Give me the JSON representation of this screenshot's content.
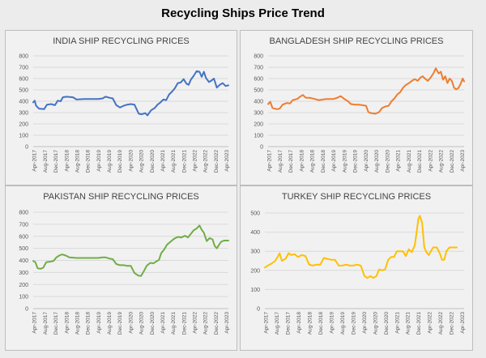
{
  "page": {
    "title": "Recycling Ships Price Trend"
  },
  "x_ticks": [
    "Apr-2017",
    "Aug-2017",
    "Dec-2017",
    "Apr-2018",
    "Aug-2018",
    "Dec-2018",
    "Apr-2019",
    "Aug-2019",
    "Dec-2019",
    "Apr-2020",
    "Aug-2020",
    "Dec-2020",
    "Apr-2021",
    "Aug-2021",
    "Dec-2021",
    "Apr-2022",
    "Aug-2022",
    "Dec-2022",
    "Apr-2023"
  ],
  "chart_data": [
    {
      "type": "line",
      "title": "INDIA SHIP RECYCLING PRICES",
      "color": "#4472c4",
      "ylim": [
        0,
        800
      ],
      "yticks": [
        0,
        100,
        200,
        300,
        400,
        500,
        600,
        700,
        800
      ],
      "grid": true,
      "series": [
        {
          "values": [
            [
              0,
              390
            ],
            [
              0.2,
              405
            ],
            [
              0.4,
              360
            ],
            [
              0.8,
              335
            ],
            [
              1.5,
              330
            ],
            [
              1.9,
              370
            ],
            [
              2.5,
              375
            ],
            [
              3,
              365
            ],
            [
              3.4,
              405
            ],
            [
              3.8,
              400
            ],
            [
              4.1,
              435
            ],
            [
              4.6,
              440
            ],
            [
              5.5,
              435
            ],
            [
              6,
              415
            ],
            [
              7,
              420
            ],
            [
              8,
              420
            ],
            [
              9,
              420
            ],
            [
              9.6,
              425
            ],
            [
              10,
              440
            ],
            [
              10.6,
              430
            ],
            [
              11,
              425
            ],
            [
              11.5,
              365
            ],
            [
              12,
              345
            ],
            [
              12.5,
              360
            ],
            [
              13,
              370
            ],
            [
              13.5,
              375
            ],
            [
              14,
              370
            ],
            [
              14.6,
              290
            ],
            [
              15,
              285
            ],
            [
              15.5,
              295
            ],
            [
              15.8,
              275
            ],
            [
              16.3,
              320
            ],
            [
              16.8,
              340
            ],
            [
              17.2,
              370
            ],
            [
              17.6,
              390
            ],
            [
              18,
              415
            ],
            [
              18.4,
              410
            ],
            [
              18.8,
              460
            ],
            [
              19.2,
              485
            ],
            [
              19.6,
              515
            ],
            [
              20,
              560
            ],
            [
              20.4,
              565
            ],
            [
              20.8,
              595
            ],
            [
              21.2,
              555
            ],
            [
              21.5,
              545
            ],
            [
              21.8,
              590
            ],
            [
              22.2,
              625
            ],
            [
              22.6,
              665
            ],
            [
              23,
              660
            ],
            [
              23.3,
              615
            ],
            [
              23.6,
              660
            ],
            [
              23.9,
              605
            ],
            [
              24.3,
              570
            ],
            [
              24.6,
              580
            ],
            [
              25,
              600
            ],
            [
              25.4,
              520
            ],
            [
              25.8,
              545
            ],
            [
              26.2,
              560
            ],
            [
              26.6,
              535
            ],
            [
              27,
              540
            ]
          ]
        }
      ]
    },
    {
      "type": "line",
      "title": "BANGLADESH SHIP RECYCLING PRICES",
      "color": "#ed7d31",
      "ylim": [
        0,
        800
      ],
      "yticks": [
        0,
        100,
        200,
        300,
        400,
        500,
        600,
        700,
        800
      ],
      "grid": true,
      "series": [
        {
          "values": [
            [
              0,
              375
            ],
            [
              0.3,
              395
            ],
            [
              0.6,
              340
            ],
            [
              1.2,
              330
            ],
            [
              1.6,
              335
            ],
            [
              2,
              370
            ],
            [
              2.6,
              385
            ],
            [
              3,
              380
            ],
            [
              3.4,
              410
            ],
            [
              4,
              420
            ],
            [
              4.4,
              440
            ],
            [
              4.8,
              455
            ],
            [
              5.2,
              430
            ],
            [
              5.8,
              430
            ],
            [
              6.4,
              420
            ],
            [
              7,
              410
            ],
            [
              8,
              420
            ],
            [
              9,
              420
            ],
            [
              9.5,
              430
            ],
            [
              10,
              445
            ],
            [
              10.5,
              420
            ],
            [
              11,
              400
            ],
            [
              11.4,
              375
            ],
            [
              12,
              370
            ],
            [
              12.5,
              370
            ],
            [
              13,
              365
            ],
            [
              13.5,
              360
            ],
            [
              13.8,
              305
            ],
            [
              14.2,
              295
            ],
            [
              14.8,
              290
            ],
            [
              15.3,
              305
            ],
            [
              15.7,
              340
            ],
            [
              16.2,
              355
            ],
            [
              16.6,
              360
            ],
            [
              17,
              400
            ],
            [
              17.4,
              425
            ],
            [
              17.8,
              460
            ],
            [
              18.2,
              480
            ],
            [
              18.6,
              520
            ],
            [
              19,
              545
            ],
            [
              19.4,
              560
            ],
            [
              19.8,
              580
            ],
            [
              20.2,
              595
            ],
            [
              20.6,
              580
            ],
            [
              21,
              610
            ],
            [
              21.3,
              620
            ],
            [
              21.6,
              600
            ],
            [
              22,
              580
            ],
            [
              22.4,
              610
            ],
            [
              22.8,
              650
            ],
            [
              23.1,
              690
            ],
            [
              23.5,
              645
            ],
            [
              23.8,
              660
            ],
            [
              24.1,
              590
            ],
            [
              24.4,
              620
            ],
            [
              24.7,
              560
            ],
            [
              25,
              600
            ],
            [
              25.3,
              580
            ],
            [
              25.6,
              520
            ],
            [
              25.9,
              505
            ],
            [
              26.2,
              515
            ],
            [
              26.5,
              550
            ],
            [
              26.8,
              600
            ],
            [
              27,
              575
            ]
          ]
        }
      ]
    },
    {
      "type": "line",
      "title": "PAKISTAN SHIP RECYCLING PRICES",
      "color": "#70ad47",
      "ylim": [
        0,
        800
      ],
      "yticks": [
        0,
        100,
        200,
        300,
        400,
        500,
        600,
        700,
        800
      ],
      "grid": true,
      "series": [
        {
          "values": [
            [
              0,
              395
            ],
            [
              0.3,
              385
            ],
            [
              0.6,
              335
            ],
            [
              1,
              330
            ],
            [
              1.4,
              340
            ],
            [
              1.8,
              385
            ],
            [
              2.4,
              390
            ],
            [
              2.8,
              395
            ],
            [
              3.2,
              425
            ],
            [
              3.6,
              440
            ],
            [
              4,
              450
            ],
            [
              4.5,
              440
            ],
            [
              5,
              425
            ],
            [
              6,
              420
            ],
            [
              7,
              420
            ],
            [
              8,
              420
            ],
            [
              9,
              420
            ],
            [
              9.6,
              425
            ],
            [
              10,
              425
            ],
            [
              10.6,
              415
            ],
            [
              11,
              410
            ],
            [
              11.5,
              370
            ],
            [
              12,
              360
            ],
            [
              12.5,
              360
            ],
            [
              13,
              355
            ],
            [
              13.5,
              355
            ],
            [
              14,
              295
            ],
            [
              14.5,
              275
            ],
            [
              14.9,
              270
            ],
            [
              15.3,
              310
            ],
            [
              15.7,
              355
            ],
            [
              16.2,
              380
            ],
            [
              16.6,
              375
            ],
            [
              17,
              390
            ],
            [
              17.4,
              405
            ],
            [
              17.7,
              460
            ],
            [
              18.1,
              490
            ],
            [
              18.5,
              530
            ],
            [
              19,
              555
            ],
            [
              19.5,
              580
            ],
            [
              20,
              595
            ],
            [
              20.5,
              590
            ],
            [
              21,
              605
            ],
            [
              21.4,
              590
            ],
            [
              21.8,
              620
            ],
            [
              22.2,
              650
            ],
            [
              22.6,
              665
            ],
            [
              23,
              690
            ],
            [
              23.3,
              655
            ],
            [
              23.6,
              630
            ],
            [
              24,
              560
            ],
            [
              24.4,
              585
            ],
            [
              24.8,
              575
            ],
            [
              25.1,
              520
            ],
            [
              25.4,
              500
            ],
            [
              25.7,
              530
            ],
            [
              26,
              555
            ],
            [
              26.4,
              565
            ],
            [
              27,
              565
            ]
          ]
        }
      ]
    },
    {
      "type": "line",
      "title": "TURKEY SHIP RECYCLING PRICES",
      "color": "#ffc000",
      "ylim": [
        0,
        500
      ],
      "yticks": [
        0,
        100,
        200,
        300,
        400,
        500
      ],
      "grid": true,
      "series": [
        {
          "values": [
            [
              0,
              215
            ],
            [
              0.4,
              225
            ],
            [
              0.9,
              235
            ],
            [
              1.4,
              250
            ],
            [
              1.8,
              275
            ],
            [
              2,
              290
            ],
            [
              2.3,
              250
            ],
            [
              2.8,
              260
            ],
            [
              3.2,
              290
            ],
            [
              3.6,
              280
            ],
            [
              4,
              285
            ],
            [
              4.5,
              270
            ],
            [
              5,
              280
            ],
            [
              5.5,
              275
            ],
            [
              6,
              230
            ],
            [
              6.5,
              225
            ],
            [
              7,
              230
            ],
            [
              7.5,
              230
            ],
            [
              8,
              265
            ],
            [
              8.5,
              260
            ],
            [
              9,
              255
            ],
            [
              9.5,
              255
            ],
            [
              10,
              225
            ],
            [
              10.5,
              225
            ],
            [
              11,
              230
            ],
            [
              11.5,
              225
            ],
            [
              12,
              225
            ],
            [
              12.5,
              230
            ],
            [
              13,
              225
            ],
            [
              13.5,
              170
            ],
            [
              13.9,
              160
            ],
            [
              14.3,
              170
            ],
            [
              14.7,
              160
            ],
            [
              15.1,
              170
            ],
            [
              15.5,
              205
            ],
            [
              15.9,
              200
            ],
            [
              16.3,
              205
            ],
            [
              16.7,
              255
            ],
            [
              17.1,
              270
            ],
            [
              17.5,
              270
            ],
            [
              17.9,
              300
            ],
            [
              18.3,
              300
            ],
            [
              18.7,
              300
            ],
            [
              19.1,
              275
            ],
            [
              19.5,
              310
            ],
            [
              19.9,
              295
            ],
            [
              20.3,
              330
            ],
            [
              20.6,
              410
            ],
            [
              20.8,
              470
            ],
            [
              21,
              485
            ],
            [
              21.3,
              450
            ],
            [
              21.6,
              320
            ],
            [
              21.9,
              295
            ],
            [
              22.2,
              280
            ],
            [
              22.5,
              300
            ],
            [
              22.8,
              320
            ],
            [
              23.3,
              320
            ],
            [
              23.7,
              290
            ],
            [
              24,
              255
            ],
            [
              24.3,
              255
            ],
            [
              24.6,
              300
            ],
            [
              25,
              320
            ],
            [
              25.5,
              320
            ],
            [
              26,
              320
            ]
          ]
        }
      ]
    }
  ]
}
